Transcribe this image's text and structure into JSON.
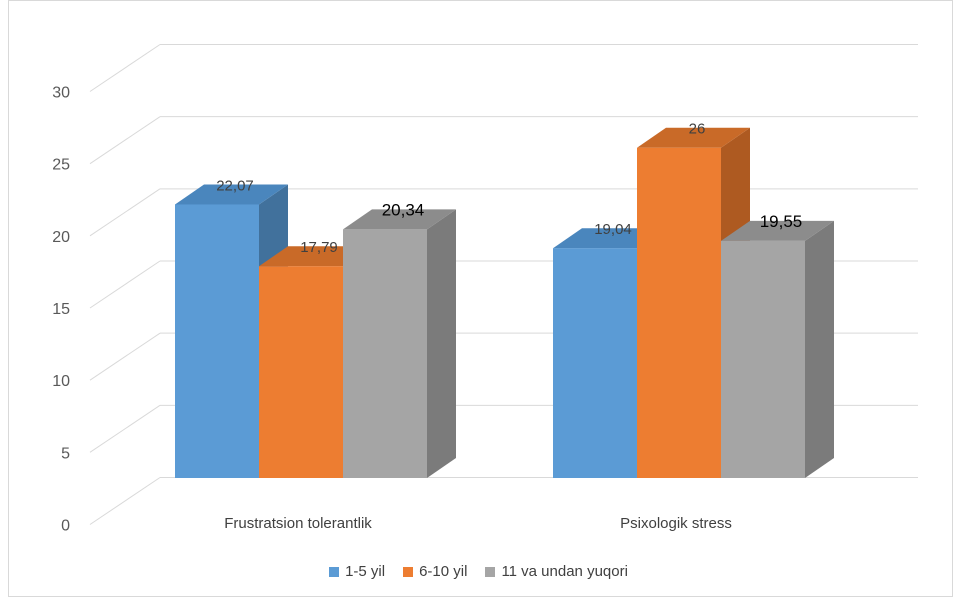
{
  "chart_data": {
    "type": "bar",
    "categories": [
      "Frustratsion tolerantlik",
      "Psixologik stress"
    ],
    "series": [
      {
        "name": "1-5 yil",
        "values": [
          22.07,
          19.04
        ],
        "labels": [
          "22,07",
          "19,04"
        ],
        "color": "#5b9bd5",
        "side_color": "#41719c",
        "top_color": "#4a86bd"
      },
      {
        "name": "6-10 yil",
        "values": [
          17.79,
          26
        ],
        "labels": [
          "17,79",
          "26"
        ],
        "color": "#ed7d31",
        "side_color": "#ae5a21",
        "top_color": "#c96a28"
      },
      {
        "name": "11 va undan yuqori",
        "values": [
          20.34,
          19.55
        ],
        "labels": [
          "20,34",
          "19,55"
        ],
        "color": "#a5a5a5",
        "side_color": "#7b7b7b",
        "top_color": "#8c8c8c"
      }
    ],
    "ylim": [
      0,
      30
    ],
    "yticks": [
      "0",
      "5",
      "10",
      "15",
      "20",
      "25",
      "30"
    ],
    "grid": true,
    "legend_position": "bottom",
    "style": "3d-clustered-column"
  }
}
